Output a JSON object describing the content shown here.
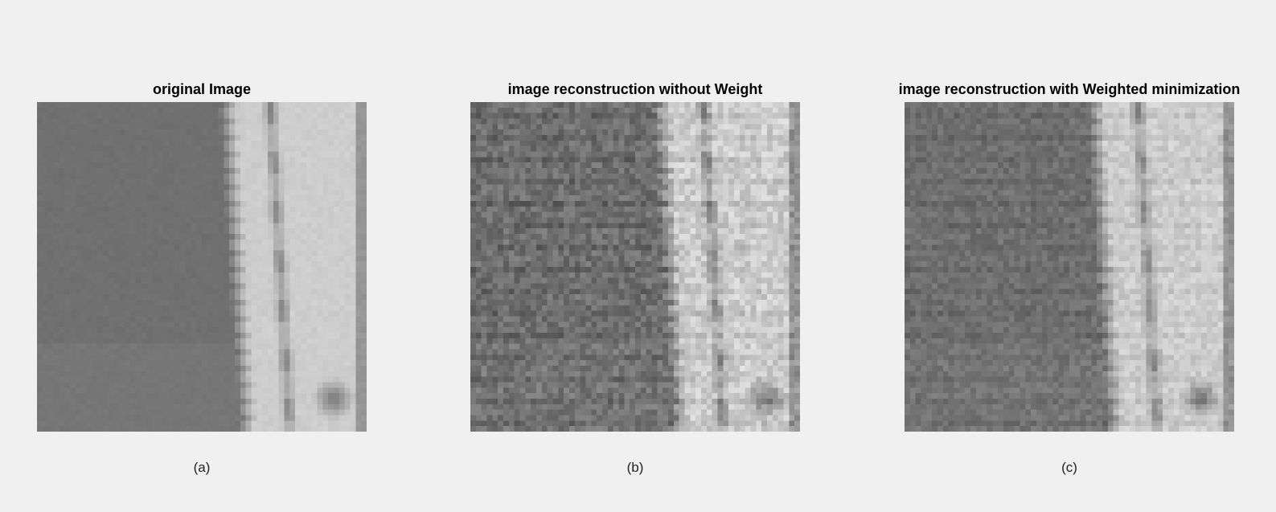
{
  "panels": [
    {
      "title": "original Image",
      "caption": "(a)",
      "variant": "original"
    },
    {
      "title": "image reconstruction without Weight",
      "caption": "(b)",
      "variant": "noisy"
    },
    {
      "title": "image reconstruction with Weighted minimization",
      "caption": "(c)",
      "variant": "weighted"
    }
  ]
}
